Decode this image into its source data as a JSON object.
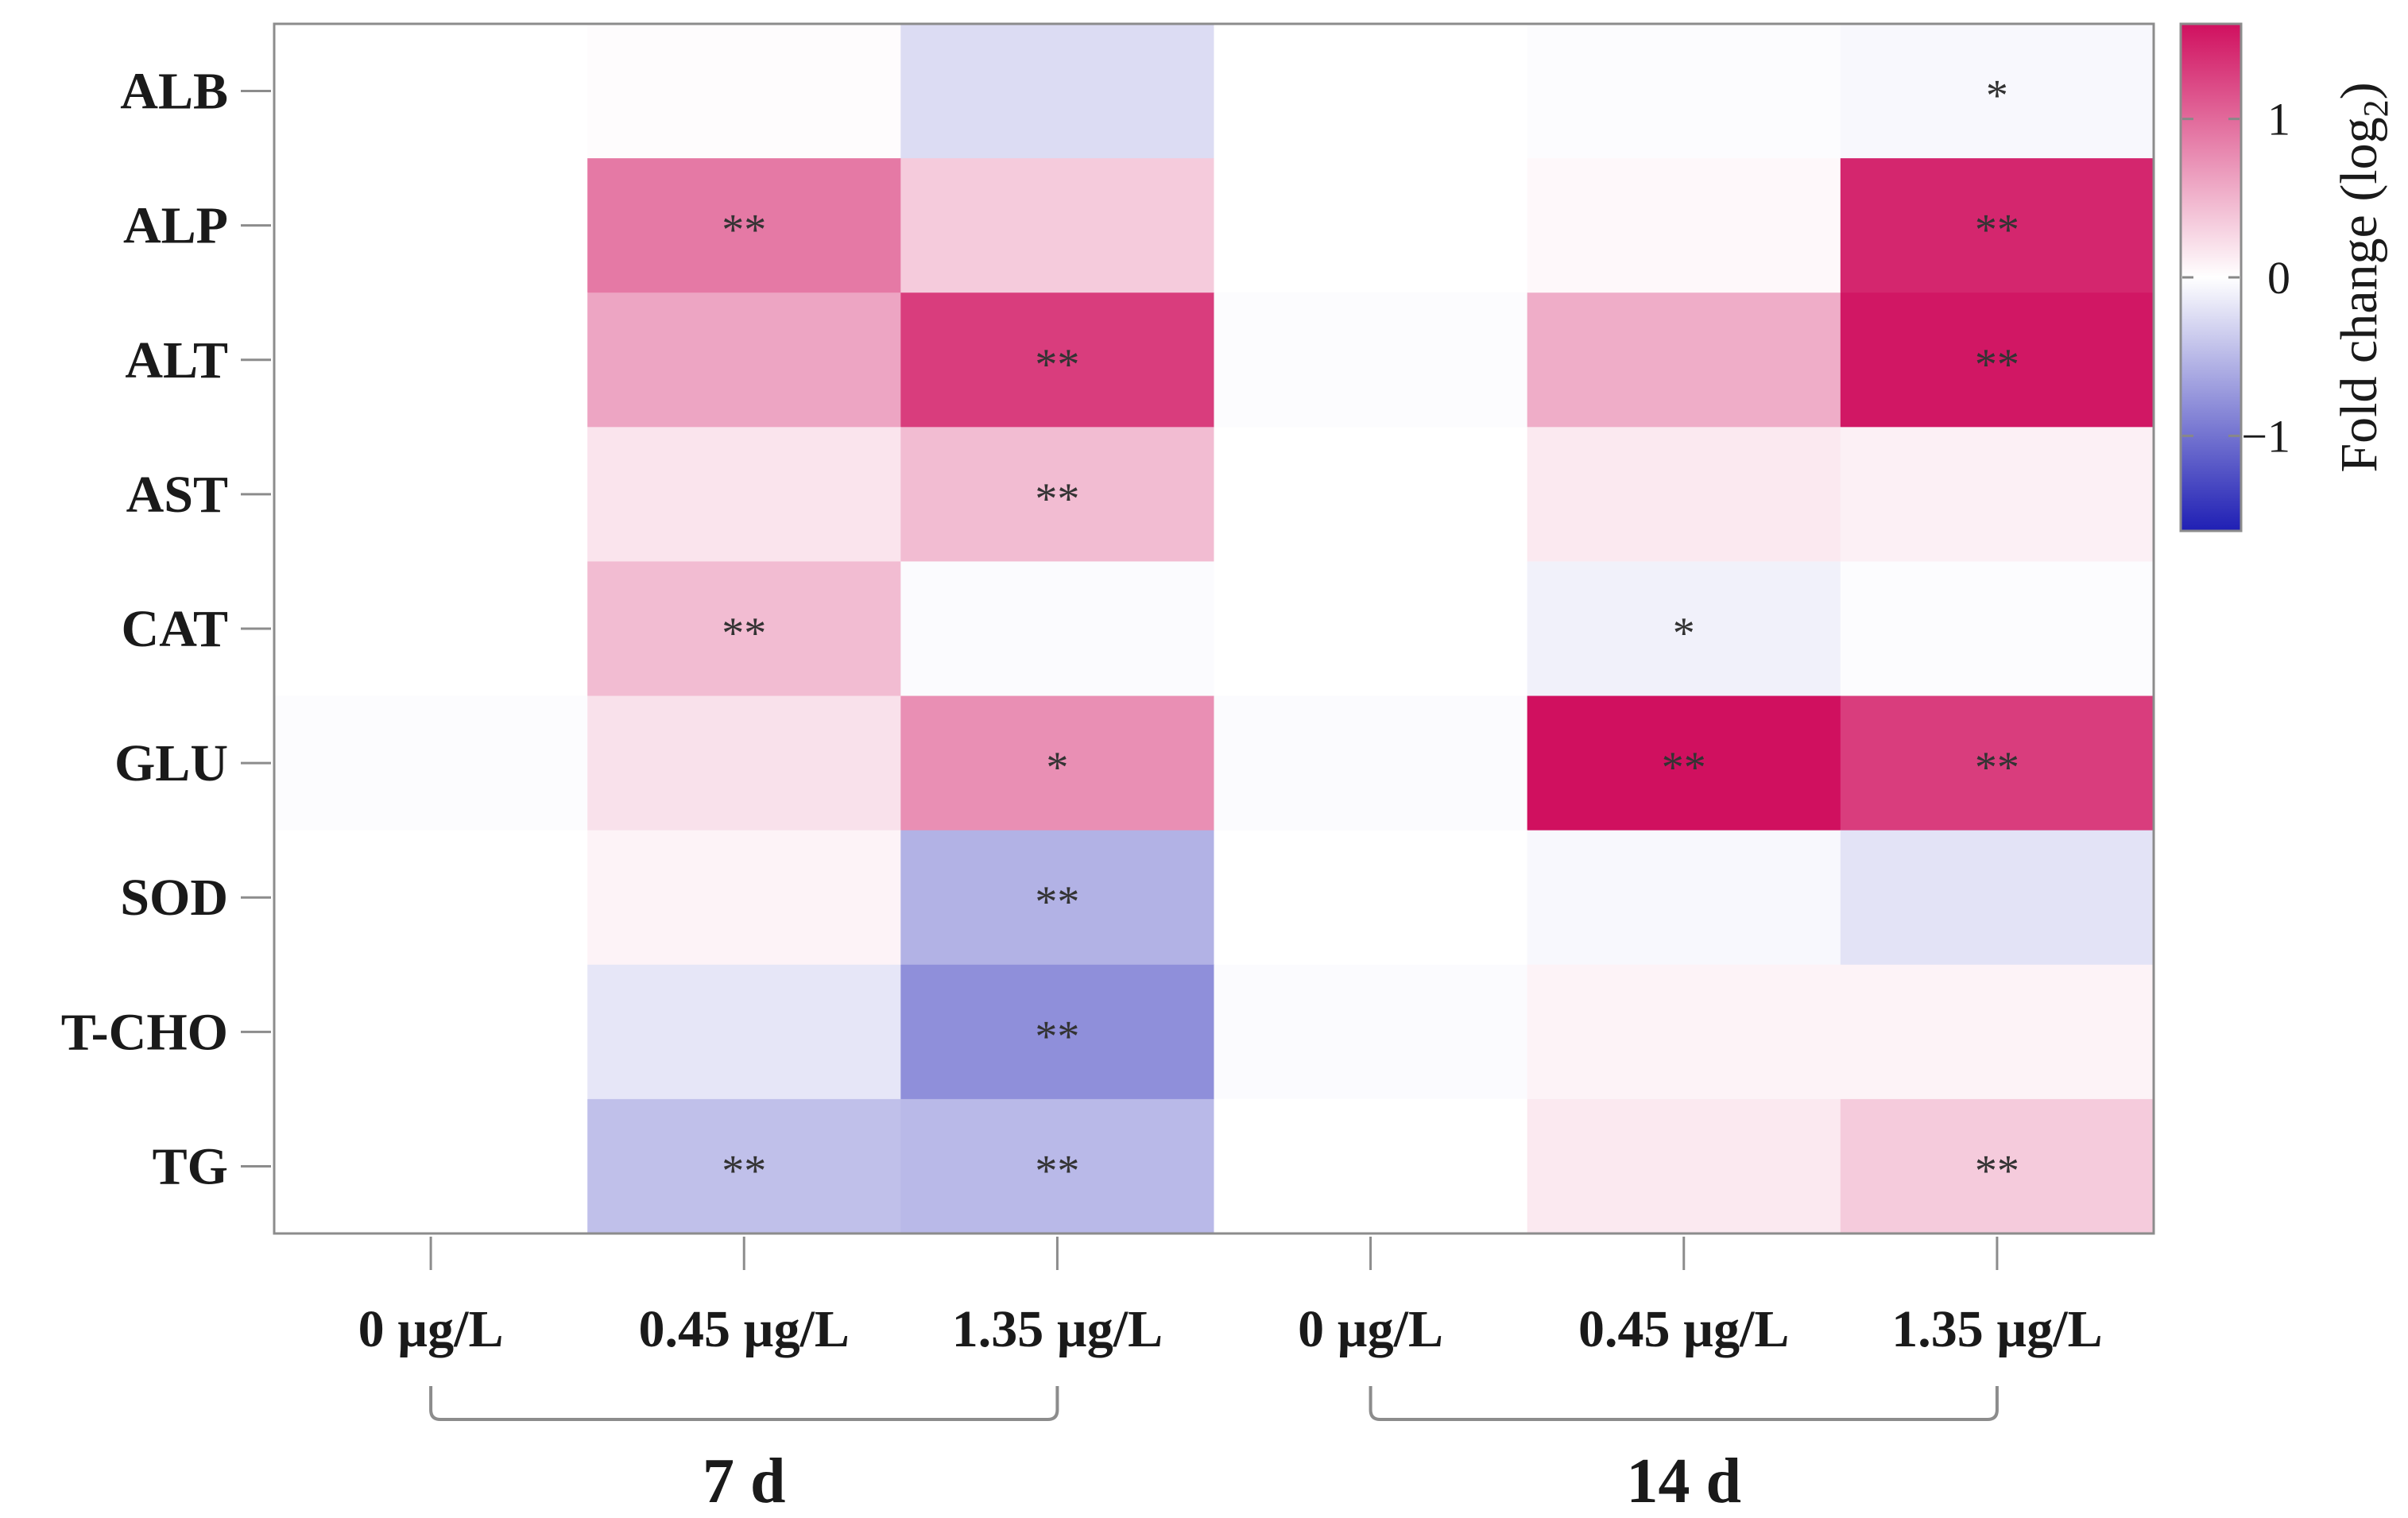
{
  "chart_data": {
    "type": "heatmap",
    "rows": [
      "ALB",
      "ALP",
      "ALT",
      "AST",
      "CAT",
      "GLU",
      "SOD",
      "T-CHO",
      "TG"
    ],
    "columns": [
      "0 µg/L",
      "0.45 µg/L",
      "1.35 µg/L",
      "0 µg/L",
      "0.45 µg/L",
      "1.35 µg/L"
    ],
    "groups": [
      {
        "label": "7 d",
        "columns": [
          0,
          1,
          2
        ]
      },
      {
        "label": "14 d",
        "columns": [
          3,
          4,
          5
        ]
      }
    ],
    "values": [
      [
        0.0,
        0.02,
        -0.25,
        0.0,
        -0.02,
        -0.05
      ],
      [
        0.0,
        0.9,
        0.35,
        0.0,
        0.05,
        1.45
      ],
      [
        0.0,
        0.6,
        1.3,
        -0.02,
        0.55,
        1.55
      ],
      [
        0.0,
        0.18,
        0.45,
        0.0,
        0.15,
        0.1
      ],
      [
        0.0,
        0.45,
        -0.03,
        0.0,
        -0.1,
        -0.02
      ],
      [
        -0.02,
        0.2,
        0.75,
        -0.03,
        1.6,
        1.3
      ],
      [
        0.0,
        0.08,
        -0.55,
        0.0,
        -0.05,
        -0.2
      ],
      [
        0.0,
        -0.18,
        -0.8,
        -0.03,
        0.08,
        0.08
      ],
      [
        0.0,
        -0.45,
        -0.5,
        0.0,
        0.15,
        0.35
      ]
    ],
    "significance": [
      [
        "",
        "",
        "",
        "",
        "",
        "*"
      ],
      [
        "",
        "**",
        "",
        "",
        "",
        "**"
      ],
      [
        "",
        "",
        "**",
        "",
        "",
        "**"
      ],
      [
        "",
        "",
        "**",
        "",
        "",
        ""
      ],
      [
        "",
        "**",
        "",
        "",
        "*",
        ""
      ],
      [
        "",
        "",
        "*",
        "",
        "**",
        "**"
      ],
      [
        "",
        "",
        "**",
        "",
        "",
        ""
      ],
      [
        "",
        "",
        "**",
        "",
        "",
        ""
      ],
      [
        "",
        "**",
        "**",
        "",
        "",
        "**"
      ]
    ],
    "colorbar": {
      "title": "Fold change (log",
      "title_subscript": "2",
      "title_suffix": ")",
      "range": [
        -1.6,
        1.6
      ],
      "ticks": [
        1,
        0,
        -1
      ],
      "tick_labels": [
        "1",
        "0",
        "−1"
      ],
      "colors": {
        "low": "#1f1fb4",
        "mid": "#ffffff",
        "high": "#d0105f"
      }
    },
    "xlabel": "",
    "ylabel": ""
  }
}
